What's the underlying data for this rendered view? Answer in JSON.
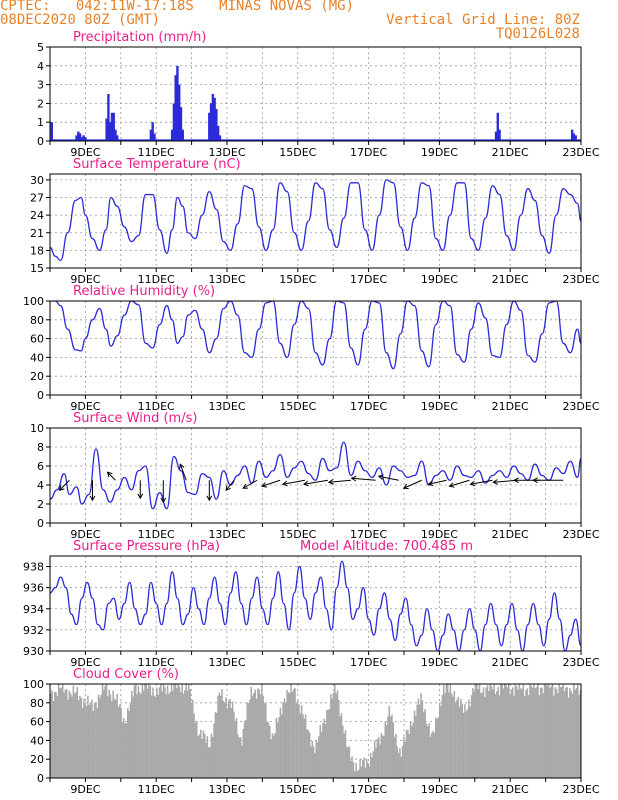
{
  "header": {
    "line1": "CPTEC:   042:11W-17:18S   MINAS NOVAS (MG)",
    "line2": "08DEC2020 80Z (GMT)",
    "grid_note": "Vertical Grid Line: 80Z",
    "code": "TQ0126L028"
  },
  "colors": {
    "header": "#e8822a",
    "title": "#e8208a",
    "series": "#2b2bd8",
    "cloud": "#a9a9a9",
    "grid": "#9a9a9a"
  },
  "chart_data": [
    {
      "type": "bar",
      "title": "Precipitation (mm/h)",
      "x_tick_labels": [
        "9DEC",
        "11DEC",
        "13DEC",
        "15DEC",
        "17DEC",
        "19DEC",
        "21DEC",
        "23DEC"
      ],
      "x_range_days": [
        0,
        15
      ],
      "ylim": [
        0,
        5
      ],
      "y_ticks": [
        0,
        1,
        2,
        3,
        4,
        5
      ],
      "grid": true,
      "x": [
        0.05,
        0.75,
        0.8,
        0.85,
        0.9,
        0.95,
        1.0,
        1.6,
        1.65,
        1.7,
        1.75,
        1.8,
        1.85,
        1.9,
        2.85,
        2.9,
        2.95,
        3.45,
        3.5,
        3.55,
        3.6,
        3.65,
        3.7,
        3.75,
        4.5,
        4.55,
        4.6,
        4.65,
        4.7,
        4.75,
        4.8,
        12.6,
        12.65,
        12.7,
        14.75,
        14.8,
        14.85
      ],
      "values": [
        1.0,
        0.3,
        0.5,
        0.4,
        0.2,
        0.3,
        0.2,
        1.2,
        2.5,
        1.0,
        1.5,
        1.5,
        0.6,
        0.3,
        0.6,
        1.0,
        0.4,
        0.6,
        2.0,
        3.5,
        4.0,
        3.0,
        1.8,
        0.6,
        1.5,
        2.0,
        2.5,
        2.3,
        1.7,
        0.8,
        0.3,
        0.5,
        1.5,
        0.6,
        0.6,
        0.4,
        0.3
      ]
    },
    {
      "type": "line",
      "title": "Surface Temperature (nC)",
      "x_tick_labels": [
        "9DEC",
        "11DEC",
        "13DEC",
        "15DEC",
        "17DEC",
        "19DEC",
        "21DEC",
        "23DEC"
      ],
      "x_range_days": [
        0,
        15
      ],
      "ylim": [
        15,
        31
      ],
      "y_ticks": [
        15,
        18,
        21,
        24,
        27,
        30
      ],
      "grid": true,
      "x": [
        0.0,
        0.15,
        0.3,
        0.5,
        0.72,
        0.88,
        1.0,
        1.2,
        1.4,
        1.58,
        1.72,
        1.9,
        2.1,
        2.3,
        2.5,
        2.7,
        2.9,
        3.1,
        3.3,
        3.45,
        3.6,
        3.75,
        3.9,
        4.1,
        4.3,
        4.5,
        4.7,
        4.9,
        5.1,
        5.3,
        5.5,
        5.7,
        5.9,
        6.1,
        6.3,
        6.5,
        6.7,
        6.9,
        7.1,
        7.3,
        7.5,
        7.7,
        7.9,
        8.1,
        8.3,
        8.5,
        8.7,
        8.9,
        9.1,
        9.3,
        9.5,
        9.7,
        9.9,
        10.1,
        10.3,
        10.5,
        10.7,
        10.9,
        11.1,
        11.3,
        11.5,
        11.7,
        11.9,
        12.1,
        12.3,
        12.5,
        12.7,
        12.9,
        13.1,
        13.3,
        13.5,
        13.7,
        13.9,
        14.1,
        14.3,
        14.5,
        14.7,
        14.9,
        15.0
      ],
      "values": [
        18.5,
        17.0,
        16.3,
        21.0,
        26.5,
        27.0,
        24.0,
        20.0,
        18.0,
        21.5,
        27.0,
        25.5,
        22.0,
        19.5,
        20.5,
        27.5,
        27.5,
        21.5,
        17.5,
        21.5,
        27.0,
        25.5,
        21.0,
        20.0,
        24.0,
        28.0,
        25.0,
        19.5,
        18.0,
        22.5,
        29.0,
        28.5,
        22.0,
        18.0,
        21.5,
        29.5,
        28.0,
        21.0,
        18.0,
        23.0,
        29.5,
        28.5,
        21.5,
        18.5,
        23.5,
        29.5,
        29.5,
        21.5,
        18.0,
        24.0,
        30.0,
        29.5,
        22.0,
        18.0,
        23.5,
        29.5,
        29.0,
        20.0,
        18.0,
        24.0,
        29.5,
        29.5,
        20.0,
        18.0,
        23.5,
        29.0,
        27.5,
        20.5,
        18.0,
        24.0,
        28.5,
        26.5,
        20.5,
        17.5,
        24.0,
        28.5,
        27.5,
        26.0,
        23.0
      ]
    },
    {
      "type": "line",
      "title": "Relative Humidity (%)",
      "x_tick_labels": [
        "9DEC",
        "11DEC",
        "13DEC",
        "15DEC",
        "17DEC",
        "19DEC",
        "21DEC",
        "23DEC"
      ],
      "x_range_days": [
        0,
        15
      ],
      "ylim": [
        0,
        100
      ],
      "y_ticks": [
        0,
        20,
        40,
        60,
        80,
        100
      ],
      "grid": true,
      "x": [
        0.0,
        0.15,
        0.3,
        0.5,
        0.72,
        0.88,
        1.0,
        1.2,
        1.4,
        1.58,
        1.72,
        1.9,
        2.1,
        2.3,
        2.5,
        2.7,
        2.9,
        3.1,
        3.3,
        3.45,
        3.6,
        3.75,
        3.9,
        4.1,
        4.3,
        4.5,
        4.7,
        4.9,
        5.1,
        5.3,
        5.5,
        5.7,
        5.9,
        6.1,
        6.3,
        6.5,
        6.7,
        6.9,
        7.1,
        7.3,
        7.5,
        7.7,
        7.9,
        8.1,
        8.3,
        8.5,
        8.7,
        8.9,
        9.1,
        9.3,
        9.5,
        9.7,
        9.9,
        10.1,
        10.3,
        10.5,
        10.7,
        10.9,
        11.1,
        11.3,
        11.5,
        11.7,
        11.9,
        12.1,
        12.3,
        12.5,
        12.7,
        12.9,
        13.1,
        13.3,
        13.5,
        13.7,
        13.9,
        14.1,
        14.3,
        14.5,
        14.7,
        14.9,
        15.0
      ],
      "values": [
        100,
        100,
        95,
        70,
        48,
        47,
        60,
        80,
        92,
        70,
        52,
        63,
        85,
        100,
        96,
        55,
        50,
        75,
        95,
        80,
        55,
        62,
        85,
        90,
        70,
        45,
        60,
        92,
        100,
        85,
        45,
        40,
        70,
        98,
        100,
        55,
        40,
        75,
        100,
        92,
        45,
        32,
        60,
        100,
        98,
        50,
        32,
        70,
        100,
        98,
        45,
        28,
        65,
        100,
        95,
        47,
        30,
        75,
        100,
        95,
        43,
        35,
        70,
        98,
        82,
        42,
        40,
        75,
        100,
        90,
        42,
        35,
        65,
        98,
        100,
        55,
        45,
        70,
        55
      ]
    },
    {
      "type": "line",
      "title": "Surface Wind (m/s)",
      "x_tick_labels": [
        "9DEC",
        "11DEC",
        "13DEC",
        "15DEC",
        "17DEC",
        "19DEC",
        "21DEC",
        "23DEC"
      ],
      "x_range_days": [
        0,
        15
      ],
      "ylim": [
        0,
        10
      ],
      "y_ticks": [
        0,
        2,
        4,
        6,
        8,
        10
      ],
      "grid": true,
      "x": [
        0.0,
        0.2,
        0.4,
        0.55,
        0.75,
        0.9,
        1.1,
        1.3,
        1.5,
        1.7,
        1.9,
        2.1,
        2.3,
        2.5,
        2.7,
        2.9,
        3.1,
        3.3,
        3.5,
        3.7,
        3.9,
        4.1,
        4.3,
        4.5,
        4.7,
        4.9,
        5.1,
        5.3,
        5.5,
        5.7,
        5.9,
        6.1,
        6.3,
        6.5,
        6.7,
        6.9,
        7.1,
        7.3,
        7.5,
        7.7,
        7.9,
        8.1,
        8.3,
        8.5,
        8.7,
        8.9,
        9.1,
        9.3,
        9.5,
        9.7,
        9.9,
        10.1,
        10.3,
        10.5,
        10.7,
        10.9,
        11.1,
        11.3,
        11.5,
        11.7,
        11.9,
        12.1,
        12.3,
        12.5,
        12.7,
        12.9,
        13.1,
        13.3,
        13.5,
        13.7,
        13.9,
        14.1,
        14.3,
        14.5,
        14.7,
        14.9,
        15.0
      ],
      "values": [
        2.5,
        3.5,
        5.2,
        3.0,
        3.8,
        2.0,
        3.0,
        7.8,
        3.5,
        2.2,
        3.5,
        4.8,
        3.5,
        5.5,
        6.0,
        1.5,
        3.2,
        1.5,
        7.0,
        5.5,
        3.2,
        3.0,
        5.2,
        4.8,
        2.5,
        5.5,
        4.0,
        5.0,
        6.0,
        4.2,
        6.5,
        4.8,
        5.5,
        7.2,
        4.8,
        5.8,
        6.5,
        5.2,
        4.5,
        6.8,
        5.5,
        5.8,
        8.5,
        5.0,
        6.5,
        5.5,
        4.8,
        5.8,
        4.0,
        6.0,
        5.5,
        4.8,
        5.0,
        6.5,
        4.0,
        5.0,
        5.5,
        4.5,
        6.0,
        5.0,
        4.8,
        5.5,
        4.2,
        5.0,
        5.5,
        4.8,
        6.0,
        5.2,
        4.5,
        6.2,
        5.0,
        4.5,
        5.8,
        5.2,
        6.5,
        4.8,
        6.8
      ]
    },
    {
      "type": "line",
      "title": "Surface Pressure (hPa)",
      "annotation": "Model Altitude: 700.485 m",
      "x_tick_labels": [
        "9DEC",
        "11DEC",
        "13DEC",
        "15DEC",
        "17DEC",
        "19DEC",
        "21DEC",
        "23DEC"
      ],
      "x_range_days": [
        0,
        15
      ],
      "ylim": [
        930,
        939
      ],
      "y_ticks": [
        930,
        932,
        934,
        936,
        938
      ],
      "grid": true,
      "x": [
        0.0,
        0.15,
        0.3,
        0.45,
        0.6,
        0.75,
        0.9,
        1.05,
        1.2,
        1.35,
        1.5,
        1.65,
        1.8,
        1.95,
        2.1,
        2.25,
        2.4,
        2.55,
        2.7,
        2.85,
        3.0,
        3.15,
        3.3,
        3.45,
        3.6,
        3.75,
        3.9,
        4.05,
        4.2,
        4.35,
        4.5,
        4.65,
        4.8,
        4.95,
        5.1,
        5.25,
        5.4,
        5.55,
        5.7,
        5.85,
        6.0,
        6.15,
        6.3,
        6.45,
        6.6,
        6.75,
        6.9,
        7.05,
        7.2,
        7.35,
        7.5,
        7.65,
        7.8,
        7.95,
        8.1,
        8.25,
        8.4,
        8.55,
        8.7,
        8.85,
        9.0,
        9.15,
        9.3,
        9.45,
        9.6,
        9.75,
        9.9,
        10.05,
        10.2,
        10.35,
        10.5,
        10.65,
        10.8,
        10.95,
        11.1,
        11.25,
        11.4,
        11.55,
        11.7,
        11.85,
        12.0,
        12.15,
        12.3,
        12.45,
        12.6,
        12.75,
        12.9,
        13.05,
        13.2,
        13.35,
        13.5,
        13.65,
        13.8,
        13.95,
        14.1,
        14.25,
        14.4,
        14.55,
        14.7,
        14.85,
        15.0
      ],
      "values": [
        935.5,
        936.0,
        937.0,
        936.0,
        933.5,
        932.5,
        935.0,
        936.5,
        935.0,
        932.5,
        932.0,
        934.5,
        935.0,
        933.0,
        934.5,
        936.5,
        934.0,
        932.5,
        933.5,
        936.5,
        934.5,
        932.5,
        934.5,
        937.5,
        935.0,
        932.5,
        933.5,
        936.0,
        934.0,
        932.5,
        935.0,
        937.0,
        934.5,
        932.5,
        935.5,
        937.5,
        934.5,
        932.5,
        935.0,
        937.0,
        934.0,
        932.5,
        935.0,
        937.5,
        934.5,
        932.0,
        935.5,
        938.0,
        935.0,
        933.0,
        935.5,
        937.0,
        934.0,
        932.0,
        936.0,
        938.5,
        936.0,
        933.0,
        934.0,
        936.0,
        933.0,
        931.5,
        934.0,
        935.5,
        933.0,
        931.0,
        933.5,
        935.0,
        932.5,
        930.5,
        931.5,
        934.0,
        932.0,
        930.0,
        931.5,
        933.5,
        932.0,
        930.0,
        932.0,
        934.0,
        932.0,
        930.0,
        932.5,
        934.5,
        932.5,
        930.5,
        932.5,
        934.5,
        932.0,
        930.0,
        932.5,
        934.5,
        932.5,
        930.5,
        933.0,
        935.5,
        933.0,
        930.0,
        931.5,
        933.0,
        930.5
      ]
    },
    {
      "type": "area",
      "title": "Cloud Cover (%)",
      "x_tick_labels": [
        "9DEC",
        "11DEC",
        "13DEC",
        "15DEC",
        "17DEC",
        "19DEC",
        "21DEC",
        "23DEC"
      ],
      "x_range_days": [
        0,
        15
      ],
      "ylim": [
        0,
        100
      ],
      "y_ticks": [
        0,
        20,
        40,
        60,
        80,
        100
      ],
      "grid": true,
      "x": [
        0.0,
        0.3,
        0.6,
        0.9,
        1.2,
        1.5,
        1.8,
        2.1,
        2.4,
        2.7,
        3.0,
        3.3,
        3.6,
        3.9,
        4.2,
        4.5,
        4.8,
        5.1,
        5.4,
        5.7,
        6.0,
        6.3,
        6.6,
        6.9,
        7.2,
        7.5,
        7.8,
        8.1,
        8.4,
        8.7,
        9.0,
        9.3,
        9.6,
        9.9,
        10.2,
        10.5,
        10.8,
        11.1,
        11.4,
        11.7,
        12.0,
        12.3,
        12.6,
        12.9,
        13.2,
        13.5,
        13.8,
        14.1,
        14.4,
        14.7,
        15.0
      ],
      "values": [
        90,
        95,
        92,
        85,
        75,
        95,
        90,
        60,
        95,
        98,
        92,
        96,
        98,
        97,
        50,
        35,
        90,
        80,
        40,
        95,
        90,
        40,
        85,
        95,
        60,
        30,
        70,
        96,
        30,
        10,
        20,
        40,
        70,
        25,
        60,
        85,
        40,
        95,
        92,
        70,
        97,
        95,
        96,
        98,
        95,
        96,
        97,
        98,
        96,
        95,
        92
      ]
    }
  ]
}
